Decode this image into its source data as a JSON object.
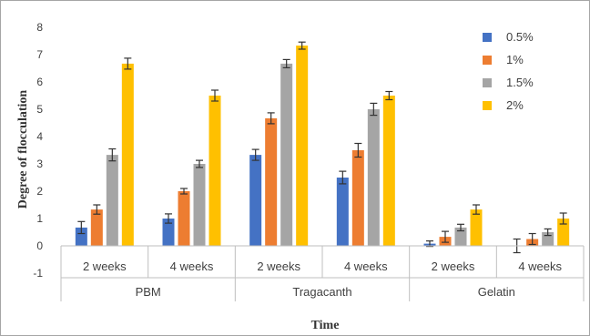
{
  "chart_data": {
    "type": "bar",
    "xlabel": "Time",
    "ylabel": "Degree of flocculation",
    "ylim": [
      -1,
      8
    ],
    "yticks": [
      "8",
      "7",
      "6",
      "5",
      "4",
      "3",
      "2",
      "1",
      "0",
      "-1"
    ],
    "groups": [
      {
        "label": "PBM",
        "categories": [
          "2 weeks",
          "4 weeks"
        ]
      },
      {
        "label": "Tragacanth",
        "categories": [
          "2 weeks",
          "4 weeks"
        ]
      },
      {
        "label": "Gelatin",
        "categories": [
          "2 weeks",
          "4 weeks"
        ]
      }
    ],
    "categories": [
      "2 weeks",
      "4 weeks",
      "2 weeks",
      "4 weeks",
      "2 weeks",
      "4 weeks"
    ],
    "series": [
      {
        "name": "0.5%",
        "color": "#4472c4",
        "values": [
          0.67,
          1.0,
          3.33,
          2.5,
          0.08,
          0.0
        ],
        "errors": [
          0.22,
          0.17,
          0.2,
          0.23,
          0.1,
          0.25
        ]
      },
      {
        "name": "1%",
        "color": "#ed7d31",
        "values": [
          1.33,
          2.0,
          4.67,
          3.5,
          0.33,
          0.25
        ],
        "errors": [
          0.17,
          0.1,
          0.2,
          0.25,
          0.2,
          0.2
        ]
      },
      {
        "name": "1.5%",
        "color": "#a5a5a5",
        "values": [
          3.33,
          3.0,
          6.67,
          5.0,
          0.67,
          0.5
        ],
        "errors": [
          0.22,
          0.13,
          0.15,
          0.22,
          0.12,
          0.12
        ]
      },
      {
        "name": "2%",
        "color": "#ffc000",
        "values": [
          6.67,
          5.5,
          7.33,
          5.5,
          1.33,
          1.0
        ],
        "errors": [
          0.2,
          0.2,
          0.13,
          0.15,
          0.17,
          0.2
        ]
      }
    ],
    "legend_position": "top-right",
    "grid": false
  }
}
